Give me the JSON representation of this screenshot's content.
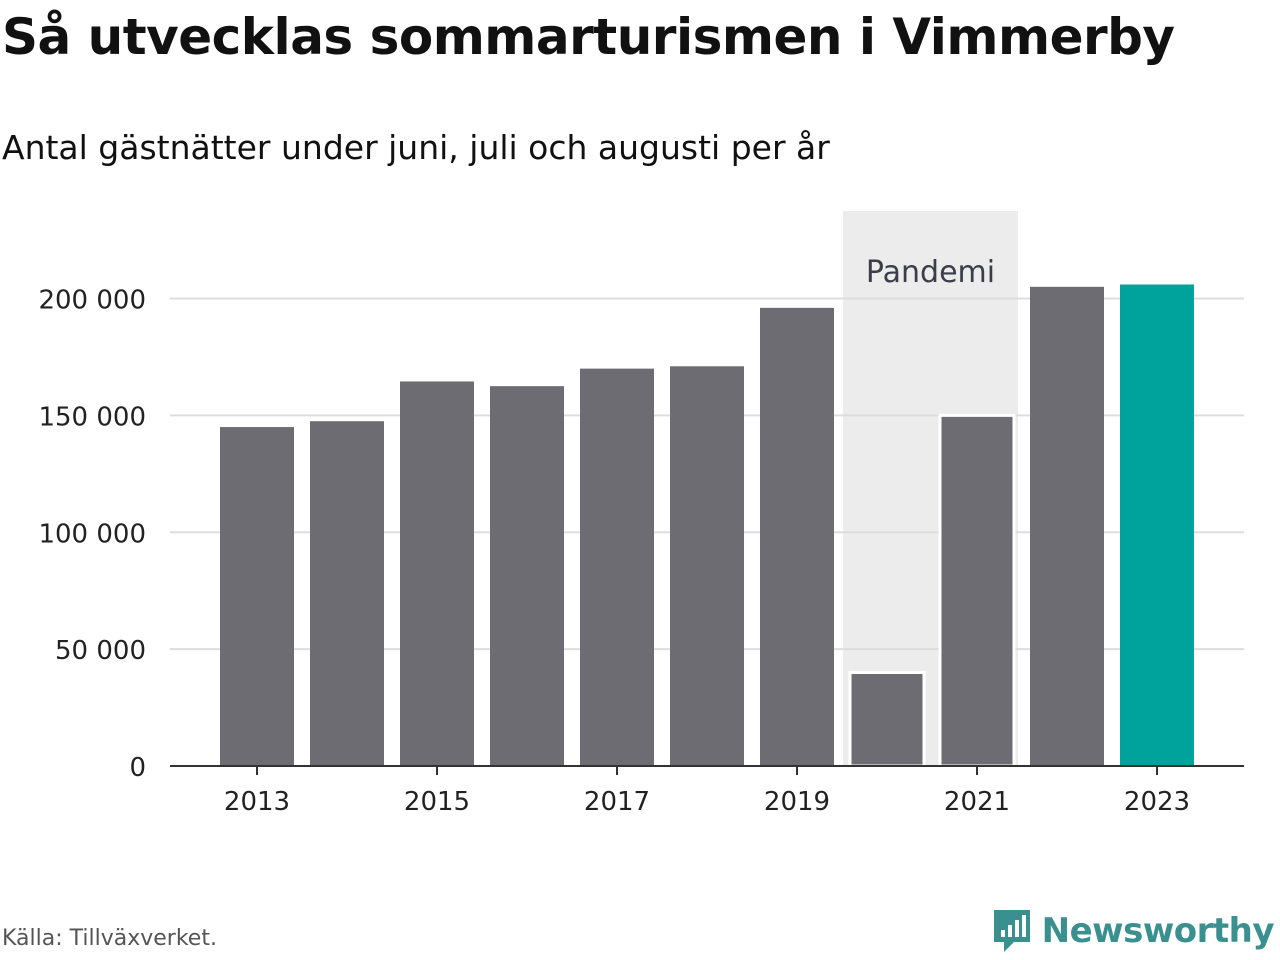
{
  "title": "Så utvecklas sommarturismen i Vimmerby",
  "subtitle": "Antal gästnätter under juni, juli och augusti per år",
  "source": "Källa: Tillväxverket.",
  "brand": "Newsworthy",
  "colors": {
    "bar": "#6d6c72",
    "highlight": "#00a39b",
    "band": "#ececec",
    "grid": "#dddddd",
    "brand": "#3a8f8f"
  },
  "chart_data": {
    "type": "bar",
    "categories": [
      "2013",
      "2014",
      "2015",
      "2016",
      "2017",
      "2018",
      "2019",
      "2020",
      "2021",
      "2022",
      "2023"
    ],
    "values": [
      145000,
      147500,
      164500,
      162500,
      170000,
      171000,
      196000,
      40000,
      150000,
      205000,
      206000
    ],
    "highlight_category": "2023",
    "x_tick_labels": [
      "2013",
      "2015",
      "2017",
      "2019",
      "2021",
      "2023"
    ],
    "y_ticks": [
      0,
      50000,
      100000,
      150000,
      200000
    ],
    "y_tick_labels": [
      "0",
      "50 000",
      "100 000",
      "150 000",
      "200 000"
    ],
    "ylim": [
      0,
      237000
    ],
    "annotation": {
      "label": "Pandemi",
      "from": "2020",
      "to": "2021"
    },
    "grid": true
  }
}
